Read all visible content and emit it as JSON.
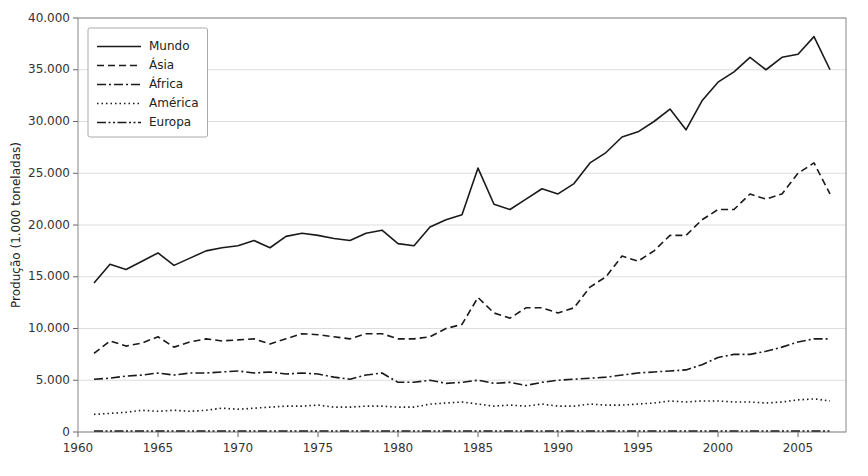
{
  "chart_data": {
    "type": "line",
    "y_label": "Produção (1.000 toneladas)",
    "x": [
      1961,
      1962,
      1963,
      1964,
      1965,
      1966,
      1967,
      1968,
      1969,
      1970,
      1971,
      1972,
      1973,
      1974,
      1975,
      1976,
      1977,
      1978,
      1979,
      1980,
      1981,
      1982,
      1983,
      1984,
      1985,
      1986,
      1987,
      1988,
      1989,
      1990,
      1991,
      1992,
      1993,
      1994,
      1995,
      1996,
      1997,
      1998,
      1999,
      2000,
      2001,
      2002,
      2003,
      2004,
      2005,
      2006,
      2007
    ],
    "series": [
      {
        "name": "Mundo",
        "color": "#1a1a1a",
        "line_style": "solid",
        "values": [
          14400,
          16200,
          15700,
          16500,
          17300,
          16100,
          16800,
          17500,
          17800,
          18000,
          18500,
          17800,
          18900,
          19200,
          19000,
          18700,
          18500,
          19200,
          19500,
          18200,
          18000,
          19800,
          20500,
          21000,
          25500,
          22000,
          21500,
          22500,
          23500,
          23000,
          24000,
          26000,
          27000,
          28500,
          29000,
          30000,
          31200,
          29200,
          32000,
          33800,
          34800,
          36200,
          35000,
          36200,
          36500,
          38200,
          35000
        ]
      },
      {
        "name": "Ásia",
        "color": "#1a1a1a",
        "line_style": "dashed",
        "values": [
          7600,
          8800,
          8300,
          8600,
          9200,
          8200,
          8700,
          9000,
          8800,
          8900,
          9000,
          8500,
          9000,
          9500,
          9400,
          9200,
          9000,
          9500,
          9500,
          9000,
          9000,
          9200,
          10000,
          10400,
          13000,
          11500,
          11000,
          12000,
          12000,
          11500,
          12000,
          14000,
          15000,
          17000,
          16500,
          17500,
          19000,
          19000,
          20500,
          21500,
          21500,
          23000,
          22500,
          23000,
          25000,
          26000,
          23000
        ]
      },
      {
        "name": "África",
        "color": "#1a1a1a",
        "line_style": "dashdot",
        "values": [
          5100,
          5200,
          5400,
          5500,
          5700,
          5500,
          5700,
          5700,
          5800,
          5900,
          5700,
          5800,
          5600,
          5700,
          5600,
          5300,
          5100,
          5500,
          5700,
          4800,
          4800,
          5000,
          4700,
          4800,
          5000,
          4700,
          4800,
          4500,
          4800,
          5000,
          5100,
          5200,
          5300,
          5500,
          5700,
          5800,
          5900,
          6000,
          6500,
          7200,
          7500,
          7500,
          7800,
          8200,
          8700,
          9000,
          9000
        ]
      },
      {
        "name": "América",
        "color": "#1a1a1a",
        "line_style": "dotted",
        "values": [
          1700,
          1800,
          1900,
          2100,
          2000,
          2100,
          2000,
          2100,
          2300,
          2200,
          2300,
          2400,
          2500,
          2500,
          2600,
          2400,
          2400,
          2500,
          2500,
          2400,
          2400,
          2700,
          2800,
          2900,
          2700,
          2500,
          2600,
          2500,
          2700,
          2500,
          2500,
          2700,
          2600,
          2600,
          2700,
          2800,
          3000,
          2900,
          3000,
          3000,
          2900,
          2900,
          2800,
          2900,
          3100,
          3200,
          3000
        ]
      },
      {
        "name": "Europa",
        "color": "#1a1a1a",
        "line_style": "dashdotdot",
        "values": [
          100,
          100,
          100,
          100,
          100,
          100,
          100,
          100,
          100,
          100,
          100,
          100,
          100,
          100,
          100,
          100,
          100,
          100,
          100,
          100,
          100,
          100,
          100,
          100,
          100,
          100,
          100,
          100,
          100,
          100,
          100,
          100,
          100,
          100,
          100,
          100,
          100,
          100,
          100,
          100,
          100,
          100,
          100,
          100,
          100,
          100,
          100
        ]
      }
    ],
    "xlim": [
      1960,
      2008
    ],
    "xticks": [
      1960,
      1965,
      1970,
      1975,
      1980,
      1985,
      1990,
      1995,
      2000,
      2005
    ],
    "ylim": [
      0,
      40000
    ],
    "yticks": [
      0,
      {
        "value": 5000,
        "label": "5.000"
      },
      {
        "value": 10000,
        "label": "10.000"
      },
      {
        "value": 15000,
        "label": "15.000"
      },
      {
        "value": 20000,
        "label": "20.000"
      },
      {
        "value": 25000,
        "label": "25.000"
      },
      {
        "value": 30000,
        "label": "30.000"
      },
      {
        "value": 35000,
        "label": "35.000"
      },
      {
        "value": 40000,
        "label": "40.000"
      }
    ],
    "grid": true,
    "legend": "upper left"
  }
}
